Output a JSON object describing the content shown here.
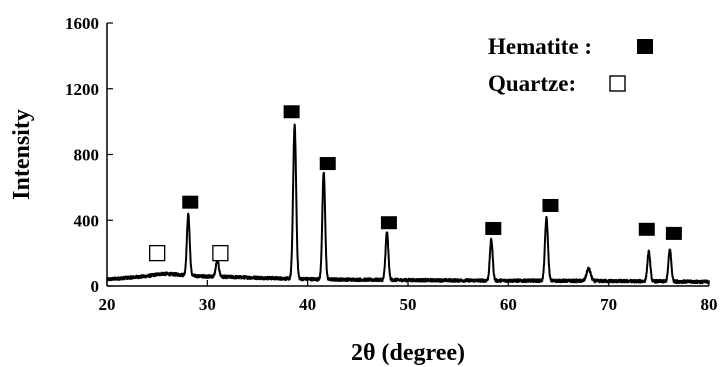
{
  "chart_data": {
    "type": "line",
    "title": "",
    "xlabel": "2θ (degree)",
    "ylabel": "Intensity",
    "xlim": [
      20,
      80
    ],
    "ylim": [
      0,
      1600
    ],
    "x_ticks": [
      20,
      30,
      40,
      50,
      60,
      70,
      80
    ],
    "y_ticks": [
      0,
      400,
      800,
      1200,
      1600
    ],
    "grid": false,
    "legend_position": "top-right",
    "legend": [
      {
        "label": "Hematite :",
        "marker": "filled-square"
      },
      {
        "label": "Quartze:",
        "marker": "open-square"
      }
    ],
    "line_color": "#000000",
    "baseline": [
      [
        20,
        40
      ],
      [
        22,
        50
      ],
      [
        24,
        60
      ],
      [
        25.5,
        75
      ],
      [
        27,
        70
      ],
      [
        29,
        60
      ],
      [
        32,
        55
      ],
      [
        35,
        50
      ],
      [
        38,
        45
      ],
      [
        42,
        40
      ],
      [
        46,
        38
      ],
      [
        52,
        35
      ],
      [
        58,
        33
      ],
      [
        64,
        32
      ],
      [
        70,
        30
      ],
      [
        76,
        28
      ],
      [
        80,
        25
      ]
    ],
    "peaks": [
      {
        "x": 28.1,
        "height": 370,
        "width": 0.14
      },
      {
        "x": 31.0,
        "height": 100,
        "width": 0.15
      },
      {
        "x": 38.7,
        "height": 930,
        "width": 0.15
      },
      {
        "x": 41.6,
        "height": 650,
        "width": 0.14
      },
      {
        "x": 47.9,
        "height": 290,
        "width": 0.14
      },
      {
        "x": 58.3,
        "height": 250,
        "width": 0.14
      },
      {
        "x": 63.8,
        "height": 380,
        "width": 0.15
      },
      {
        "x": 68.0,
        "height": 75,
        "width": 0.2
      },
      {
        "x": 74.0,
        "height": 180,
        "width": 0.14
      },
      {
        "x": 76.1,
        "height": 195,
        "width": 0.14
      }
    ],
    "phase_markers": [
      {
        "phase": "Quartze",
        "symbol": "open-square",
        "x": 25.0,
        "y": 200
      },
      {
        "phase": "Quartze",
        "symbol": "open-square",
        "x": 31.3,
        "y": 200
      },
      {
        "phase": "Hematite",
        "symbol": "filled-square",
        "x": 28.3,
        "y": 510
      },
      {
        "phase": "Hematite",
        "symbol": "filled-square",
        "x": 38.4,
        "y": 1060
      },
      {
        "phase": "Hematite",
        "symbol": "filled-square",
        "x": 42.0,
        "y": 745
      },
      {
        "phase": "Hematite",
        "symbol": "filled-square",
        "x": 48.1,
        "y": 385
      },
      {
        "phase": "Hematite",
        "symbol": "filled-square",
        "x": 58.5,
        "y": 350
      },
      {
        "phase": "Hematite",
        "symbol": "filled-square",
        "x": 64.2,
        "y": 490
      },
      {
        "phase": "Hematite",
        "symbol": "filled-square",
        "x": 73.8,
        "y": 345
      },
      {
        "phase": "Hematite",
        "symbol": "filled-square",
        "x": 76.5,
        "y": 320
      }
    ]
  }
}
